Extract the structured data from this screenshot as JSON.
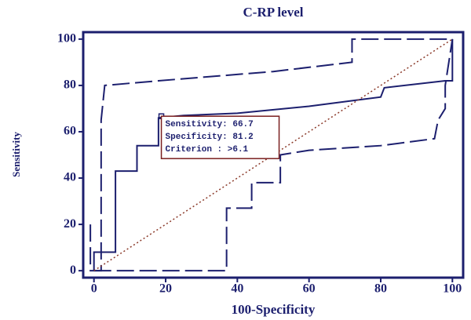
{
  "chart_data": {
    "type": "line",
    "title": "C-RP level",
    "x_label": "100-Specificity",
    "y_label": "Sensitivity",
    "xlim": [
      -3,
      103
    ],
    "ylim": [
      -3,
      103
    ],
    "xticks": [
      0,
      20,
      40,
      60,
      80,
      100
    ],
    "yticks": [
      0,
      20,
      40,
      60,
      80,
      100
    ],
    "series": [
      {
        "color": "#1c1f6e",
        "style": "solid",
        "x": [
          0,
          0,
          6,
          6,
          12,
          12,
          18,
          18,
          25,
          40,
          60,
          80,
          81,
          98,
          100,
          100
        ],
        "values": [
          0,
          8,
          8,
          43,
          43,
          54,
          54,
          66,
          67,
          68,
          71,
          75,
          79,
          82,
          82,
          100
        ]
      },
      {
        "color": "#1c1f6e",
        "style": "dashed",
        "x": [
          -1,
          -1,
          2,
          2,
          3,
          18,
          50,
          72,
          72,
          100
        ],
        "values": [
          20,
          0,
          0,
          65,
          80,
          82,
          86,
          90,
          100,
          100
        ]
      },
      {
        "color": "#1c1f6e",
        "style": "dashed",
        "x": [
          0,
          37,
          37,
          44,
          44,
          52,
          52,
          60,
          80,
          95,
          96,
          98,
          98,
          100
        ],
        "values": [
          0,
          0,
          27,
          27,
          38,
          38,
          50,
          52,
          54,
          57,
          65,
          70,
          80,
          100
        ]
      },
      {
        "color": "#8b3a2a",
        "style": "dotted",
        "x": [
          0,
          100
        ],
        "values": [
          0,
          100
        ]
      }
    ],
    "annotation": {
      "x": 18.8,
      "y": 66.7,
      "lines": [
        "Sensitivity: 66.7",
        "Specificity: 81.2",
        "Criterion : >6.1"
      ]
    }
  }
}
